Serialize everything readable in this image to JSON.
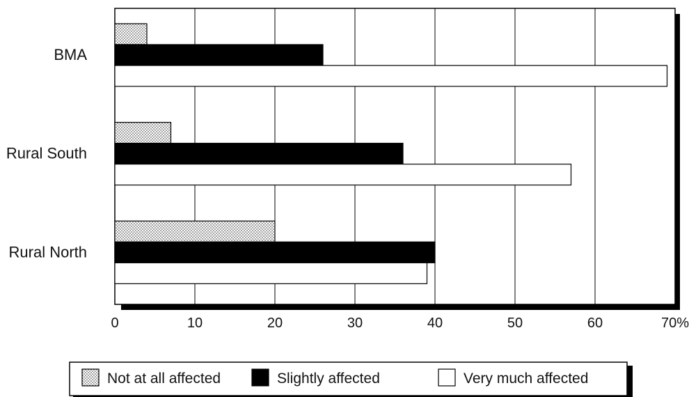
{
  "chart_data": {
    "type": "bar",
    "orientation": "horizontal",
    "categories": [
      "BMA",
      "Rural South",
      "Rural North"
    ],
    "series": [
      {
        "name": "Not at all affected",
        "values": [
          4,
          7,
          20
        ],
        "pattern": "dotted"
      },
      {
        "name": "Slightly affected",
        "values": [
          26,
          36,
          40
        ],
        "color": "#000000"
      },
      {
        "name": "Very much affected",
        "values": [
          69,
          57,
          39
        ],
        "color": "#ffffff"
      }
    ],
    "x_ticks": [
      "0",
      "10",
      "20",
      "30",
      "40",
      "50",
      "60",
      "70%"
    ],
    "xlim": [
      0,
      70
    ],
    "grid": true,
    "legend_position": "bottom",
    "title": "",
    "xlabel": "",
    "ylabel": ""
  }
}
